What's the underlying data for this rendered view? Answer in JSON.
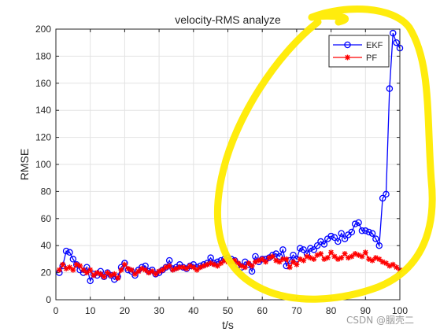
{
  "chart_data": {
    "type": "line",
    "title": "velocity-RMS analyze",
    "xlabel": "t/s",
    "ylabel": "RMSE",
    "xlim": [
      0,
      100
    ],
    "ylim": [
      0,
      200
    ],
    "xticks": [
      0,
      10,
      20,
      30,
      40,
      50,
      60,
      70,
      80,
      90,
      100
    ],
    "yticks": [
      0,
      20,
      40,
      60,
      80,
      100,
      120,
      140,
      160,
      180,
      200
    ],
    "grid": true,
    "legend_position": "top-right",
    "x": [
      1,
      2,
      3,
      4,
      5,
      6,
      7,
      8,
      9,
      10,
      11,
      12,
      13,
      14,
      15,
      16,
      17,
      18,
      19,
      20,
      21,
      22,
      23,
      24,
      25,
      26,
      27,
      28,
      29,
      30,
      31,
      32,
      33,
      34,
      35,
      36,
      37,
      38,
      39,
      40,
      41,
      42,
      43,
      44,
      45,
      46,
      47,
      48,
      49,
      50,
      51,
      52,
      53,
      54,
      55,
      56,
      57,
      58,
      59,
      60,
      61,
      62,
      63,
      64,
      65,
      66,
      67,
      68,
      69,
      70,
      71,
      72,
      73,
      74,
      75,
      76,
      77,
      78,
      79,
      80,
      81,
      82,
      83,
      84,
      85,
      86,
      87,
      88,
      89,
      90,
      91,
      92,
      93,
      94,
      95,
      96,
      97,
      98,
      99,
      100
    ],
    "series": [
      {
        "name": "EKF",
        "color": "#0000ff",
        "marker": "circle",
        "values": [
          20,
          25,
          36,
          35,
          30,
          26,
          22,
          20,
          24,
          14,
          19,
          18,
          21,
          17,
          20,
          18,
          15,
          17,
          24,
          27,
          22,
          21,
          18,
          22,
          24,
          25,
          21,
          22,
          19,
          20,
          22,
          24,
          29,
          23,
          24,
          26,
          24,
          23,
          25,
          26,
          24,
          25,
          26,
          27,
          31,
          27,
          28,
          29,
          30,
          31,
          30,
          29,
          26,
          24,
          28,
          26,
          21,
          32,
          28,
          30,
          30,
          31,
          33,
          34,
          32,
          37,
          25,
          29,
          33,
          30,
          38,
          37,
          34,
          38,
          37,
          40,
          43,
          41,
          45,
          47,
          46,
          43,
          49,
          45,
          48,
          50,
          56,
          57,
          51,
          51,
          50,
          49,
          45,
          40,
          75,
          78,
          156,
          197,
          190,
          186
        ]
      },
      {
        "name": "PF",
        "color": "#ff0000",
        "marker": "star",
        "values": [
          22,
          26,
          23,
          24,
          22,
          26,
          25,
          22,
          20,
          22,
          18,
          20,
          19,
          17,
          20,
          18,
          19,
          16,
          22,
          26,
          23,
          22,
          19,
          21,
          23,
          22,
          20,
          21,
          19,
          21,
          22,
          24,
          25,
          22,
          23,
          24,
          24,
          23,
          25,
          24,
          22,
          24,
          25,
          26,
          27,
          26,
          25,
          27,
          29,
          28,
          28,
          29,
          27,
          25,
          24,
          27,
          25,
          28,
          29,
          30,
          28,
          31,
          32,
          29,
          28,
          30,
          30,
          24,
          28,
          26,
          30,
          29,
          32,
          31,
          30,
          33,
          34,
          30,
          31,
          35,
          32,
          30,
          31,
          34,
          31,
          32,
          34,
          33,
          32,
          35,
          30,
          29,
          31,
          30,
          28,
          27,
          25,
          26,
          24,
          22
        ]
      }
    ]
  },
  "annotation_color": "#ffeb00",
  "watermark": "CSDN @胭壳二"
}
